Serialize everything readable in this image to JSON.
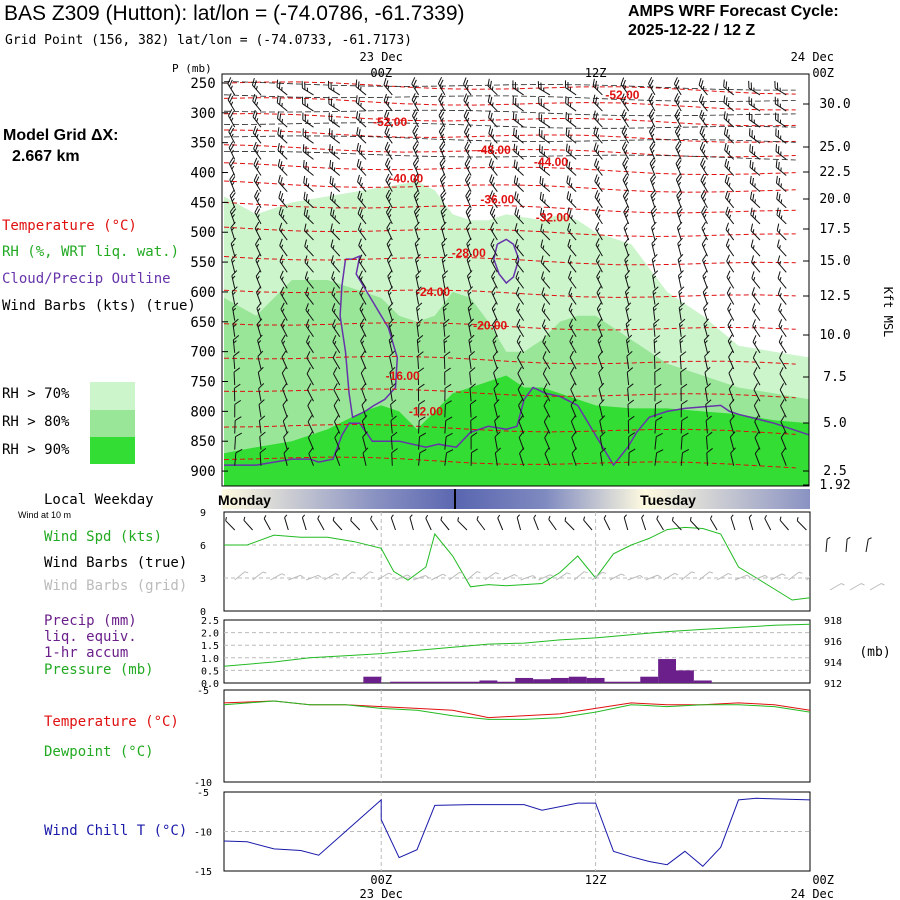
{
  "header": {
    "title": "BAS Z309 (Hutton):  lat/lon = (-74.0786, -61.7339)",
    "subtitle": "Grid Point (156, 382) lat/lon = (-74.0733, -61.7173)",
    "cycle_line1": "AMPS WRF Forecast Cycle:",
    "cycle_line2": "2025-12-22 / 12  Z",
    "grid_line1": "Model Grid ΔX:",
    "grid_line2": "2.667 km"
  },
  "legend": {
    "temperature": "Temperature (°C)",
    "rh": "RH (%, WRT liq. wat.)",
    "cloud": "Cloud/Precip Outline",
    "barbs": "Wind Barbs (kts) (true)",
    "rh70": "RH > 70%",
    "rh80": "RH > 80%",
    "rh90": "RH > 90%"
  },
  "colors": {
    "temp": "#e01010",
    "rh70": "#ccf5cc",
    "rh80": "#99e699",
    "rh90": "#33dd33",
    "cloud": "#6633aa",
    "windspd": "#22bb22",
    "precip": "#6a1f8a",
    "windchill": "#1a1aaa",
    "grey_barb": "#bbbbbb"
  },
  "time_axis": {
    "top_labels": [
      {
        "day": "23 Dec",
        "hour": "00Z"
      },
      {
        "day": "",
        "hour": "12Z"
      },
      {
        "day": "24 Dec",
        "hour": "00Z"
      }
    ],
    "bottom_labels": [
      {
        "hour": "00Z",
        "day": "23 Dec"
      },
      {
        "hour": "12Z",
        "day": ""
      },
      {
        "hour": "00Z",
        "day": "24 Dec"
      }
    ],
    "start_hour": -8.8,
    "end_hour": 24,
    "marks_hours": [
      0,
      12,
      24
    ]
  },
  "chart_data": [
    {
      "type": "cross-section",
      "id": "profile",
      "pressure_axis_label": "P (mb)",
      "pressure_ticks": [
        "250",
        "300",
        "350",
        "400",
        "450",
        "500",
        "550",
        "600",
        "650",
        "700",
        "750",
        "800",
        "850",
        "900"
      ],
      "pressure_values": [
        250,
        300,
        350,
        400,
        450,
        500,
        550,
        600,
        650,
        700,
        750,
        800,
        850,
        900
      ],
      "p_range": [
        235,
        925
      ],
      "height_axis_label": "Kft MSL",
      "height_ticks": [
        {
          "label": "30.0",
          "p": 300
        },
        {
          "label": "25.0",
          "p": 368
        },
        {
          "label": "22.5",
          "p": 400
        },
        {
          "label": "20.0",
          "p": 437
        },
        {
          "label": "17.5",
          "p": 477
        },
        {
          "label": "15.0",
          "p": 520
        },
        {
          "label": "12.5",
          "p": 565
        },
        {
          "label": "10.0",
          "p": 615
        },
        {
          "label": "7.5",
          "p": 668
        },
        {
          "label": "5.0",
          "p": 723
        },
        {
          "label": "2.5",
          "p": 780
        },
        {
          "label": "1.92",
          "p": 792
        }
      ],
      "temperature_labels": [
        {
          "label": "-52.00",
          "t": 13.5,
          "p": 270
        },
        {
          "label": "-52.00",
          "t": 0.5,
          "p": 315
        },
        {
          "label": "-48.00",
          "t": 6.3,
          "p": 362
        },
        {
          "label": "-44.00",
          "t": 9.5,
          "p": 382
        },
        {
          "label": "-40.00",
          "t": 1.4,
          "p": 410
        },
        {
          "label": "-36.00",
          "t": 6.5,
          "p": 445
        },
        {
          "label": "-32.00",
          "t": 9.6,
          "p": 475
        },
        {
          "label": "-28.00",
          "t": 4.9,
          "p": 535
        },
        {
          "label": "-24.00",
          "t": 2.9,
          "p": 600
        },
        {
          "label": "-20.00",
          "t": 6.1,
          "p": 656
        },
        {
          "label": "-16.00",
          "t": 1.2,
          "p": 741
        },
        {
          "label": "-12.00",
          "t": 2.5,
          "p": 800
        }
      ]
    },
    {
      "type": "line",
      "id": "wind",
      "legend": [
        "Wind Spd (kts)",
        "Wind Barbs (true)",
        "Wind Barbs (grid)"
      ],
      "header_left": "Local Weekday",
      "header_sub": "Wind at 10 m",
      "weekdays": [
        "Monday",
        "Tuesday"
      ],
      "yticks": [
        "9",
        "6",
        "3",
        "0"
      ],
      "ylim": [
        0,
        9
      ],
      "x": [
        -8.8,
        -7.5,
        -6,
        -4.5,
        -3,
        -1.5,
        0,
        0.7,
        1.5,
        2.5,
        3,
        4,
        5,
        6,
        7,
        8,
        9,
        10,
        11,
        12,
        13,
        14,
        15,
        16,
        17,
        18,
        19,
        20,
        21,
        22,
        23,
        24
      ],
      "values": [
        6.0,
        6.0,
        6.9,
        6.7,
        6.7,
        6.3,
        5.7,
        3.6,
        2.8,
        4.0,
        7.0,
        5.0,
        2.2,
        2.4,
        2.3,
        2.4,
        2.5,
        3.5,
        5.0,
        3.0,
        5.2,
        6.0,
        6.6,
        7.4,
        7.6,
        7.5,
        7.0,
        4.0,
        3.0,
        2.0,
        1.0,
        1.2
      ]
    },
    {
      "type": "bar-line",
      "id": "precip",
      "legend": [
        "Precip (mm)",
        "liq. equiv.",
        "1-hr accum",
        "Pressure (mb)"
      ],
      "left_ticks": [
        "2.5",
        "2.0",
        "1.5",
        "1.0",
        "0.5",
        "0.0"
      ],
      "left_lim": [
        0,
        2.5
      ],
      "right_ticks": [
        "918",
        "916",
        "914",
        "912"
      ],
      "right_lim": [
        912,
        918
      ],
      "right_unit": "(mb)",
      "bars_x": [
        -0.5,
        1,
        2,
        3,
        4,
        5,
        6,
        7,
        8,
        9,
        10,
        11,
        12,
        13,
        14,
        15,
        16,
        17,
        18
      ],
      "bars_mm": [
        0.25,
        0.05,
        0.05,
        0.05,
        0.05,
        0.05,
        0.1,
        0.05,
        0.2,
        0.15,
        0.2,
        0.25,
        0.2,
        0.05,
        0.05,
        0.25,
        0.95,
        0.5,
        0.1
      ],
      "pressure_x": [
        -8.8,
        -6,
        -4,
        -2,
        0,
        2,
        4,
        6,
        8,
        10,
        12,
        14,
        16,
        18,
        20,
        22,
        24
      ],
      "pressure": [
        913.6,
        914.0,
        914.4,
        914.6,
        914.8,
        915.1,
        915.4,
        915.7,
        915.8,
        916.1,
        916.3,
        916.6,
        916.9,
        917.1,
        917.3,
        917.5,
        917.6
      ]
    },
    {
      "type": "line",
      "id": "temperature",
      "legend": [
        "Temperature (°C)",
        "Dewpoint (°C)"
      ],
      "yticks": [
        "-5",
        "-10"
      ],
      "ylim": [
        -10,
        -5
      ],
      "x": [
        -8.8,
        -6,
        -4,
        -2,
        0,
        2,
        4,
        6,
        8,
        10,
        12,
        14,
        16,
        18,
        20,
        22,
        24
      ],
      "temp": [
        -5.7,
        -5.6,
        -5.8,
        -5.8,
        -5.9,
        -6.0,
        -6.1,
        -6.5,
        -6.4,
        -6.3,
        -6.0,
        -5.7,
        -5.8,
        -5.8,
        -5.7,
        -5.8,
        -6.1
      ],
      "dewpoint": [
        -5.8,
        -5.6,
        -5.8,
        -5.8,
        -6.0,
        -6.1,
        -6.4,
        -6.6,
        -6.6,
        -6.5,
        -6.2,
        -5.8,
        -5.9,
        -5.8,
        -5.8,
        -5.9,
        -6.2
      ]
    },
    {
      "type": "line",
      "id": "windchill",
      "legend": [
        "Wind Chill T (°C)"
      ],
      "yticks": [
        "-5",
        "-10",
        "-15"
      ],
      "ylim": [
        -15,
        -5
      ],
      "x": [
        -8.8,
        -7.5,
        -6,
        -4.5,
        -3.5,
        -2,
        0,
        0,
        1,
        2,
        3,
        5,
        8,
        9,
        11,
        12,
        13,
        14,
        15,
        16,
        17,
        18,
        19,
        20,
        21,
        24
      ],
      "values": [
        -11.2,
        -11.3,
        -12.2,
        -12.4,
        -13.0,
        -10.0,
        -6.0,
        -8.5,
        -13.3,
        -12.3,
        -6.7,
        -6.6,
        -6.6,
        -7.3,
        -6.4,
        -6.4,
        -12.5,
        -13.2,
        -13.8,
        -14.2,
        -12.5,
        -14.4,
        -12.0,
        -6.0,
        -5.8,
        -6.0
      ]
    }
  ]
}
